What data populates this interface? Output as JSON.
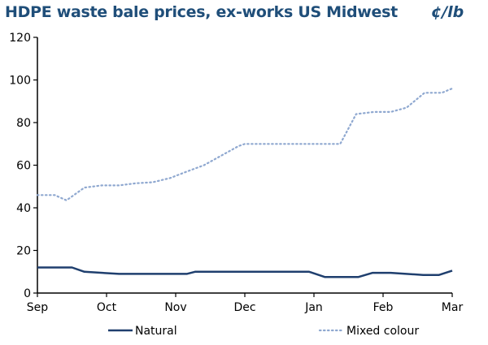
{
  "chart_data": {
    "type": "line",
    "title": "HDPE waste bale prices, ex-works US Midwest",
    "unit_label": "¢/lb",
    "xlabel": "",
    "ylabel": "",
    "x_ticks": [
      "Sep",
      "Oct",
      "Nov",
      "Dec",
      "Jan",
      "Feb",
      "Mar"
    ],
    "xlim": [
      0,
      6
    ],
    "ylim": [
      0,
      120
    ],
    "y_ticks": [
      0,
      20,
      40,
      60,
      80,
      100,
      120
    ],
    "grid": false,
    "legend_position": "bottom",
    "x_unit": "months since Sep",
    "series": [
      {
        "name": "Natural",
        "color": "#1f3f6e",
        "style": "solid",
        "points": [
          [
            0,
            12
          ],
          [
            0.5,
            12
          ],
          [
            0.68,
            10
          ],
          [
            1.18,
            9
          ],
          [
            2.16,
            9
          ],
          [
            2.28,
            10
          ],
          [
            3.93,
            10
          ],
          [
            4.16,
            7.5
          ],
          [
            4.64,
            7.5
          ],
          [
            4.85,
            9.5
          ],
          [
            5.11,
            9.5
          ],
          [
            5.58,
            8.5
          ],
          [
            5.81,
            8.5
          ],
          [
            6,
            10.5
          ]
        ]
      },
      {
        "name": "Mixed colour",
        "color": "#8fa8d0",
        "style": "dotted",
        "points": [
          [
            0,
            46
          ],
          [
            0.25,
            46
          ],
          [
            0.42,
            43.5
          ],
          [
            0.68,
            49.5
          ],
          [
            0.93,
            50.5
          ],
          [
            1.18,
            50.5
          ],
          [
            1.42,
            51.5
          ],
          [
            1.67,
            52
          ],
          [
            1.92,
            54
          ],
          [
            2.16,
            57
          ],
          [
            2.41,
            60
          ],
          [
            2.66,
            64.5
          ],
          [
            2.91,
            69
          ],
          [
            3.0,
            70
          ],
          [
            3.5,
            70
          ],
          [
            4.38,
            70
          ],
          [
            4.61,
            84
          ],
          [
            4.87,
            85
          ],
          [
            5.11,
            85
          ],
          [
            5.34,
            87
          ],
          [
            5.6,
            94
          ],
          [
            5.85,
            94
          ],
          [
            6,
            96
          ]
        ]
      }
    ]
  }
}
